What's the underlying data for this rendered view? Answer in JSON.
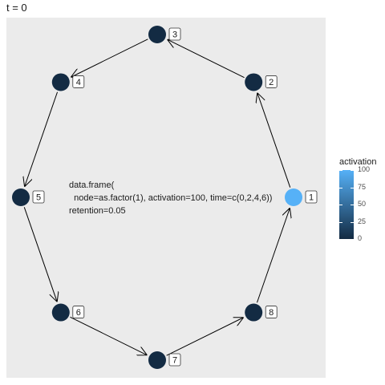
{
  "title": "t = 0",
  "annotation": {
    "line1": "data.frame(",
    "line2": "  node=as.factor(1), activation=100, time=c(0,2,4,6))",
    "line3": "retention=0.05"
  },
  "legend": {
    "title": "activation",
    "ticks": [
      "100",
      "75",
      "50",
      "25",
      "0"
    ],
    "low_color": "#132b43",
    "high_color": "#56b1f7"
  },
  "nodes": [
    {
      "label": "1",
      "activation": 100
    },
    {
      "label": "2",
      "activation": 0
    },
    {
      "label": "3",
      "activation": 0
    },
    {
      "label": "4",
      "activation": 0
    },
    {
      "label": "5",
      "activation": 0
    },
    {
      "label": "6",
      "activation": 0
    },
    {
      "label": "7",
      "activation": 0
    },
    {
      "label": "8",
      "activation": 0
    }
  ],
  "edges": [
    {
      "from": "1",
      "to": "2"
    },
    {
      "from": "2",
      "to": "3"
    },
    {
      "from": "3",
      "to": "4"
    },
    {
      "from": "4",
      "to": "5"
    },
    {
      "from": "5",
      "to": "6"
    },
    {
      "from": "6",
      "to": "7"
    },
    {
      "from": "7",
      "to": "8"
    },
    {
      "from": "8",
      "to": "1"
    }
  ],
  "colors": {
    "panel_background": "#ebebeb",
    "edge": "#000000"
  }
}
